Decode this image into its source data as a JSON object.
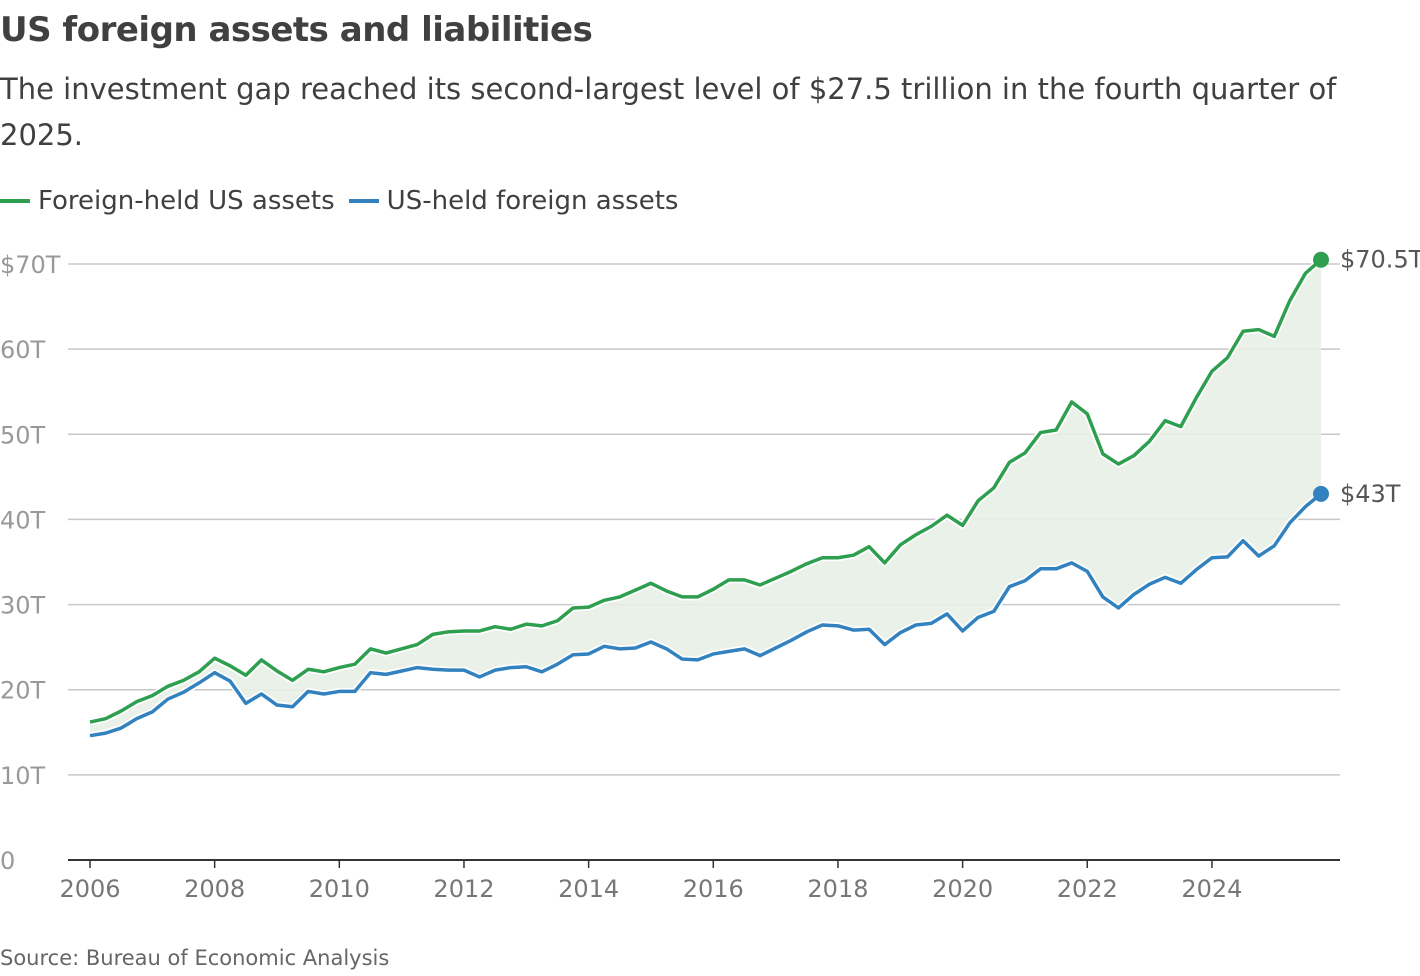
{
  "title": "US foreign assets and liabilities",
  "subtitle": "The investment gap reached its second-largest level of $27.5 trillion in the fourth quarter of 2025.",
  "source": "Source: Bureau of Economic Analysis",
  "colors": {
    "green": "#2e9e4f",
    "blue": "#3282c0",
    "fill": "#e8efe6",
    "grid": "#c8c8c8"
  },
  "chart_data": {
    "type": "line",
    "title": "US foreign assets and liabilities",
    "xlabel": "",
    "ylabel": "",
    "x_start": 2006,
    "x_step": 0.25,
    "xlim": [
      2006,
      2025.75
    ],
    "ylim": [
      0,
      70
    ],
    "y_ticks": [
      0,
      10,
      20,
      30,
      40,
      50,
      60,
      70
    ],
    "y_tick_labels": [
      "0",
      "10T",
      "20T",
      "30T",
      "40T",
      "50T",
      "60T",
      "$70T"
    ],
    "x_ticks": [
      2006,
      2008,
      2010,
      2012,
      2014,
      2016,
      2018,
      2020,
      2022,
      2024
    ],
    "x_tick_labels": [
      "2006",
      "2008",
      "2010",
      "2012",
      "2014",
      "2016",
      "2018",
      "2020",
      "2022",
      "2024"
    ],
    "grid": true,
    "legend_position": "top-left",
    "series": [
      {
        "name": "Foreign-held US assets",
        "color": "#2e9e4f",
        "end_label": "$70.5T",
        "values": [
          16.2,
          16.6,
          17.5,
          18.6,
          19.3,
          20.4,
          21.1,
          22.1,
          23.7,
          22.8,
          21.7,
          23.5,
          22.2,
          21.1,
          22.4,
          22.1,
          22.6,
          23.0,
          24.8,
          24.3,
          24.8,
          25.3,
          26.5,
          26.8,
          26.9,
          26.9,
          27.4,
          27.1,
          27.7,
          27.5,
          28.1,
          29.6,
          29.7,
          30.5,
          30.9,
          31.7,
          32.5,
          31.6,
          30.9,
          30.9,
          31.8,
          32.9,
          32.9,
          32.3,
          33.1,
          33.9,
          34.8,
          35.5,
          35.5,
          35.8,
          36.8,
          34.9,
          37.0,
          38.2,
          39.2,
          40.5,
          39.3,
          42.2,
          43.7,
          46.7,
          47.8,
          50.2,
          50.5,
          53.8,
          52.4,
          47.7,
          46.5,
          47.5,
          49.2,
          51.6,
          50.9,
          54.3,
          57.4,
          59.0,
          62.1,
          62.3,
          61.5,
          65.7,
          68.9,
          70.5
        ]
      },
      {
        "name": "US-held foreign assets",
        "color": "#3282c0",
        "end_label": "$43T",
        "values": [
          14.6,
          14.9,
          15.5,
          16.6,
          17.4,
          18.9,
          19.7,
          20.8,
          22.0,
          21.0,
          18.4,
          19.5,
          18.2,
          18.0,
          19.8,
          19.5,
          19.8,
          19.8,
          22.0,
          21.8,
          22.2,
          22.6,
          22.4,
          22.3,
          22.3,
          21.5,
          22.3,
          22.6,
          22.7,
          22.1,
          23.0,
          24.1,
          24.2,
          25.1,
          24.8,
          24.9,
          25.6,
          24.8,
          23.6,
          23.5,
          24.2,
          24.5,
          24.8,
          24.0,
          24.9,
          25.8,
          26.8,
          27.6,
          27.5,
          27.0,
          27.1,
          25.3,
          26.7,
          27.6,
          27.8,
          28.9,
          26.9,
          28.5,
          29.2,
          32.1,
          32.8,
          34.2,
          34.2,
          34.9,
          33.9,
          30.9,
          29.6,
          31.2,
          32.4,
          33.2,
          32.5,
          34.1,
          35.5,
          35.6,
          37.5,
          35.7,
          36.9,
          39.6,
          41.5,
          43.0
        ]
      }
    ]
  }
}
